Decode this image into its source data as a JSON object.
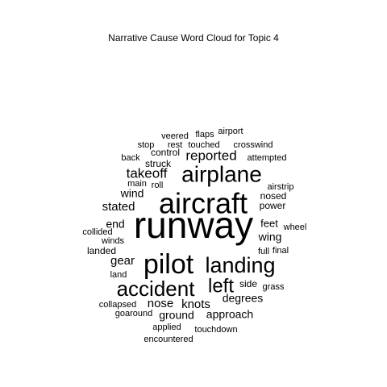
{
  "chart_data": {
    "type": "wordcloud",
    "title": "Narrative Cause Word Cloud for Topic 4",
    "words": [
      {
        "text": "runway",
        "weight": 100
      },
      {
        "text": "aircraft",
        "weight": 86
      },
      {
        "text": "pilot",
        "weight": 72
      },
      {
        "text": "landing",
        "weight": 64
      },
      {
        "text": "airplane",
        "weight": 63
      },
      {
        "text": "accident",
        "weight": 58
      },
      {
        "text": "left",
        "weight": 50
      },
      {
        "text": "reported",
        "weight": 38
      },
      {
        "text": "takeoff",
        "weight": 34
      },
      {
        "text": "stated",
        "weight": 32
      },
      {
        "text": "gear",
        "weight": 32
      },
      {
        "text": "wind",
        "weight": 30
      },
      {
        "text": "knots",
        "weight": 30
      },
      {
        "text": "nose",
        "weight": 30
      },
      {
        "text": "degrees",
        "weight": 29
      },
      {
        "text": "wing",
        "weight": 29
      },
      {
        "text": "end",
        "weight": 28
      },
      {
        "text": "ground",
        "weight": 28
      },
      {
        "text": "approach",
        "weight": 27
      },
      {
        "text": "feet",
        "weight": 27
      },
      {
        "text": "struck",
        "weight": 25
      },
      {
        "text": "nosed",
        "weight": 25
      },
      {
        "text": "power",
        "weight": 25
      },
      {
        "text": "side",
        "weight": 25
      },
      {
        "text": "roll",
        "weight": 24
      },
      {
        "text": "landed",
        "weight": 24
      },
      {
        "text": "control",
        "weight": 24
      },
      {
        "text": "grass",
        "weight": 23
      },
      {
        "text": "winds",
        "weight": 23
      },
      {
        "text": "full",
        "weight": 23
      },
      {
        "text": "land",
        "weight": 23
      },
      {
        "text": "applied",
        "weight": 23
      },
      {
        "text": "airstrip",
        "weight": 22
      },
      {
        "text": "final",
        "weight": 22
      },
      {
        "text": "wheel",
        "weight": 22
      },
      {
        "text": "touchdown",
        "weight": 22
      },
      {
        "text": "attempted",
        "weight": 22
      },
      {
        "text": "veered",
        "weight": 22
      },
      {
        "text": "collided",
        "weight": 21
      },
      {
        "text": "main",
        "weight": 21
      },
      {
        "text": "collapsed",
        "weight": 21
      },
      {
        "text": "stop",
        "weight": 21
      },
      {
        "text": "back",
        "weight": 21
      },
      {
        "text": "rest",
        "weight": 21
      },
      {
        "text": "touched",
        "weight": 21
      },
      {
        "text": "crosswind",
        "weight": 21
      },
      {
        "text": "flaps",
        "weight": 21
      },
      {
        "text": "encountered",
        "weight": 21
      },
      {
        "text": "goaround",
        "weight": 20
      },
      {
        "text": "airport",
        "weight": 20
      }
    ]
  }
}
